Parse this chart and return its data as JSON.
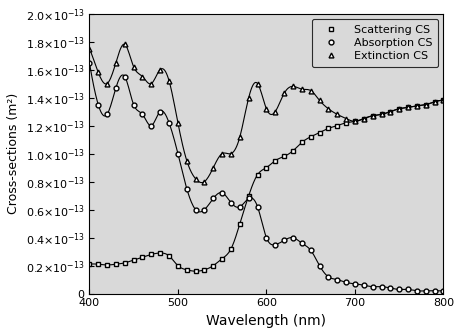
{
  "title": "",
  "xlabel": "Wavelength (nm)",
  "ylabel": "Cross-sections (m²)",
  "xlim": [
    400,
    800
  ],
  "ylim": [
    0,
    2e-13
  ],
  "yticks": [
    0,
    2e-14,
    4e-14,
    6e-14,
    8e-14,
    1e-13,
    1.2e-13,
    1.4e-13,
    1.6e-13,
    1.8e-13,
    2e-13
  ],
  "xticks": [
    400,
    500,
    600,
    700,
    800
  ],
  "background_color": "#d9d9d9",
  "line_color": "#000000",
  "legend_labels": [
    "Scattering CS",
    "Absorption CS",
    "Extinction CS"
  ],
  "scattering": {
    "x": [
      400,
      410,
      420,
      430,
      440,
      450,
      460,
      470,
      480,
      490,
      500,
      510,
      520,
      530,
      540,
      550,
      560,
      570,
      580,
      590,
      600,
      610,
      620,
      630,
      640,
      650,
      660,
      670,
      680,
      690,
      700,
      710,
      720,
      730,
      740,
      750,
      760,
      770,
      780,
      790,
      800
    ],
    "y": [
      2.1e-14,
      2.1e-14,
      2.05e-14,
      2.1e-14,
      2.2e-14,
      2.4e-14,
      2.6e-14,
      2.8e-14,
      2.9e-14,
      2.7e-14,
      2e-14,
      1.7e-14,
      1.6e-14,
      1.7e-14,
      2e-14,
      2.5e-14,
      3.2e-14,
      5e-14,
      7e-14,
      8.5e-14,
      9e-14,
      9.5e-14,
      9.8e-14,
      1.02e-13,
      1.08e-13,
      1.12e-13,
      1.15e-13,
      1.18e-13,
      1.2e-13,
      1.22e-13,
      1.23e-13,
      1.25e-13,
      1.27e-13,
      1.28e-13,
      1.3e-13,
      1.32e-13,
      1.33e-13,
      1.34e-13,
      1.35e-13,
      1.37e-13,
      1.38e-13
    ]
  },
  "absorption": {
    "x": [
      400,
      410,
      420,
      430,
      440,
      450,
      460,
      470,
      480,
      490,
      500,
      510,
      520,
      530,
      540,
      550,
      560,
      570,
      580,
      590,
      600,
      610,
      620,
      630,
      640,
      650,
      660,
      670,
      680,
      690,
      700,
      710,
      720,
      730,
      740,
      750,
      760,
      770,
      780,
      790,
      800
    ],
    "y": [
      1.65e-13,
      1.35e-13,
      1.28e-13,
      1.47e-13,
      1.55e-13,
      1.35e-13,
      1.28e-13,
      1.2e-13,
      1.3e-13,
      1.22e-13,
      1e-13,
      7.5e-14,
      6e-14,
      6e-14,
      6.8e-14,
      7.2e-14,
      6.5e-14,
      6.2e-14,
      6.8e-14,
      6.2e-14,
      4e-14,
      3.5e-14,
      3.8e-14,
      4e-14,
      3.6e-14,
      3.1e-14,
      2e-14,
      1.2e-14,
      1e-14,
      8e-15,
      7e-15,
      6e-15,
      5e-15,
      5e-15,
      4e-15,
      3e-15,
      3e-15,
      2e-15,
      2e-15,
      2e-15,
      2e-15
    ]
  },
  "extinction": {
    "x": [
      400,
      410,
      420,
      430,
      440,
      450,
      460,
      470,
      480,
      490,
      500,
      510,
      520,
      530,
      540,
      550,
      560,
      570,
      580,
      590,
      600,
      610,
      620,
      630,
      640,
      650,
      660,
      670,
      680,
      690,
      700,
      710,
      720,
      730,
      740,
      750,
      760,
      770,
      780,
      790,
      800
    ],
    "y": [
      1.75e-13,
      1.58e-13,
      1.5e-13,
      1.65e-13,
      1.78e-13,
      1.62e-13,
      1.55e-13,
      1.5e-13,
      1.6e-13,
      1.52e-13,
      1.22e-13,
      9.5e-14,
      8.2e-14,
      8e-14,
      9e-14,
      1e-13,
      1e-13,
      1.12e-13,
      1.4e-13,
      1.5e-13,
      1.32e-13,
      1.3e-13,
      1.43e-13,
      1.48e-13,
      1.46e-13,
      1.45e-13,
      1.38e-13,
      1.32e-13,
      1.28e-13,
      1.25e-13,
      1.23e-13,
      1.25e-13,
      1.27e-13,
      1.28e-13,
      1.3e-13,
      1.32e-13,
      1.33e-13,
      1.34e-13,
      1.35e-13,
      1.37e-13,
      1.38e-13
    ]
  }
}
